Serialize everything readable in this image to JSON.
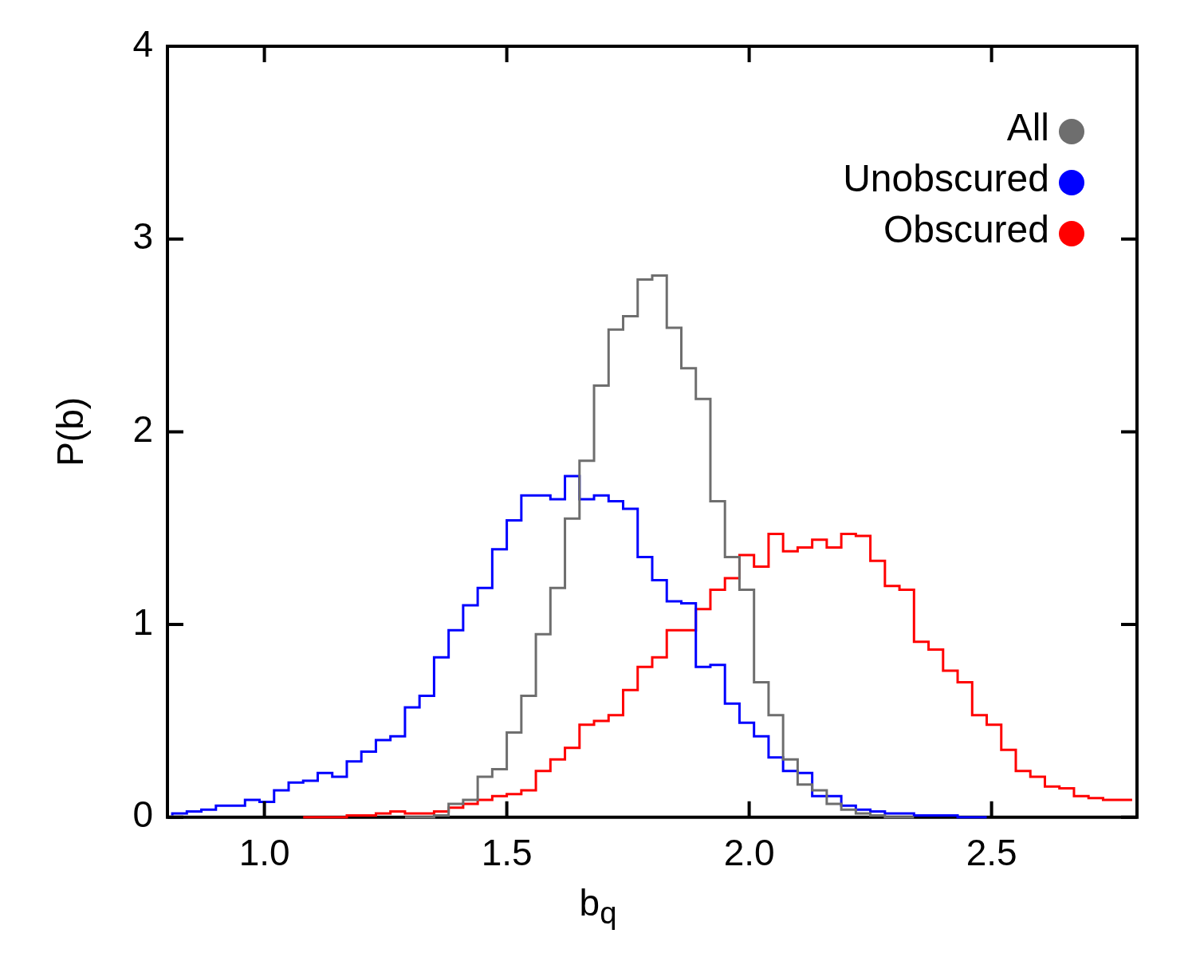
{
  "chart_data": {
    "type": "step",
    "xlabel": "b$_{q}$",
    "ylabel": "P(b)",
    "series": [
      {
        "name": "All",
        "color": "#6e6e6e",
        "x": [
          1.29,
          1.32,
          1.35,
          1.38,
          1.41,
          1.44,
          1.47,
          1.5,
          1.53,
          1.56,
          1.59,
          1.62,
          1.65,
          1.68,
          1.71,
          1.74,
          1.77,
          1.8,
          1.83,
          1.86,
          1.89,
          1.92,
          1.95,
          1.98,
          2.01,
          2.04,
          2.07,
          2.1,
          2.13,
          2.16,
          2.19,
          2.22,
          2.25,
          2.28,
          2.31,
          2.34
        ],
        "values": [
          0.0,
          0.0,
          0.0,
          0.01,
          0.07,
          0.09,
          0.21,
          0.25,
          0.44,
          0.63,
          0.95,
          1.19,
          1.55,
          1.85,
          2.24,
          2.53,
          2.6,
          2.79,
          2.81,
          2.54,
          2.33,
          2.17,
          1.64,
          1.35,
          1.18,
          0.7,
          0.53,
          0.3,
          0.17,
          0.14,
          0.07,
          0.04,
          0.02,
          0.01,
          0.0,
          0.0
        ]
      },
      {
        "name": "Unobscured",
        "color": "#0000ff",
        "x": [
          0.81,
          0.84,
          0.87,
          0.9,
          0.93,
          0.96,
          0.99,
          1.02,
          1.05,
          1.08,
          1.11,
          1.14,
          1.17,
          1.2,
          1.23,
          1.26,
          1.29,
          1.32,
          1.35,
          1.38,
          1.41,
          1.44,
          1.47,
          1.5,
          1.53,
          1.56,
          1.59,
          1.62,
          1.65,
          1.68,
          1.71,
          1.74,
          1.77,
          1.8,
          1.83,
          1.86,
          1.89,
          1.92,
          1.95,
          1.98,
          2.01,
          2.04,
          2.07,
          2.1,
          2.13,
          2.16,
          2.19,
          2.22,
          2.25,
          2.28,
          2.31,
          2.34,
          2.37,
          2.4,
          2.43,
          2.46,
          2.49
        ],
        "values": [
          0.01,
          0.02,
          0.03,
          0.04,
          0.06,
          0.06,
          0.09,
          0.08,
          0.14,
          0.18,
          0.19,
          0.23,
          0.21,
          0.29,
          0.34,
          0.4,
          0.42,
          0.57,
          0.63,
          0.83,
          0.97,
          1.1,
          1.19,
          1.39,
          1.54,
          1.67,
          1.67,
          1.65,
          1.77,
          1.65,
          1.67,
          1.64,
          1.6,
          1.35,
          1.23,
          1.12,
          1.11,
          0.78,
          0.79,
          0.59,
          0.49,
          0.42,
          0.31,
          0.24,
          0.23,
          0.11,
          0.11,
          0.06,
          0.04,
          0.03,
          0.02,
          0.02,
          0.01,
          0.01,
          0.01,
          0.0,
          0.0
        ]
      },
      {
        "name": "Obscured",
        "color": "#ff0000",
        "x": [
          1.08,
          1.11,
          1.14,
          1.17,
          1.2,
          1.23,
          1.26,
          1.29,
          1.32,
          1.35,
          1.38,
          1.41,
          1.44,
          1.47,
          1.5,
          1.53,
          1.56,
          1.59,
          1.62,
          1.65,
          1.68,
          1.71,
          1.74,
          1.77,
          1.8,
          1.83,
          1.86,
          1.89,
          1.92,
          1.95,
          1.98,
          2.01,
          2.04,
          2.07,
          2.1,
          2.13,
          2.16,
          2.19,
          2.22,
          2.25,
          2.28,
          2.31,
          2.34,
          2.37,
          2.4,
          2.43,
          2.46,
          2.49,
          2.52,
          2.55,
          2.58,
          2.61,
          2.64,
          2.67,
          2.7,
          2.73,
          2.76,
          2.79
        ],
        "values": [
          0.0,
          0.0,
          0.0,
          0.0,
          0.01,
          0.01,
          0.02,
          0.03,
          0.02,
          0.02,
          0.03,
          0.05,
          0.07,
          0.09,
          0.11,
          0.12,
          0.14,
          0.24,
          0.3,
          0.36,
          0.48,
          0.5,
          0.53,
          0.66,
          0.78,
          0.83,
          0.97,
          0.97,
          1.08,
          1.18,
          1.24,
          1.36,
          1.3,
          1.47,
          1.38,
          1.4,
          1.44,
          1.4,
          1.47,
          1.46,
          1.33,
          1.2,
          1.18,
          0.91,
          0.87,
          0.76,
          0.7,
          0.53,
          0.48,
          0.35,
          0.24,
          0.21,
          0.16,
          0.15,
          0.11,
          0.1,
          0.09,
          0.09
        ]
      }
    ],
    "xlim": [
      0.8,
      2.8
    ],
    "xticks": [
      {
        "value": 1.0,
        "label": "1.0"
      },
      {
        "value": 1.5,
        "label": "1.5"
      },
      {
        "value": 2.0,
        "label": "2.0"
      },
      {
        "value": 2.5,
        "label": "2.5"
      }
    ],
    "ylim": [
      0,
      4
    ],
    "yticks": [
      0,
      1,
      2,
      3,
      4
    ],
    "grid": false,
    "legend": "top right"
  }
}
